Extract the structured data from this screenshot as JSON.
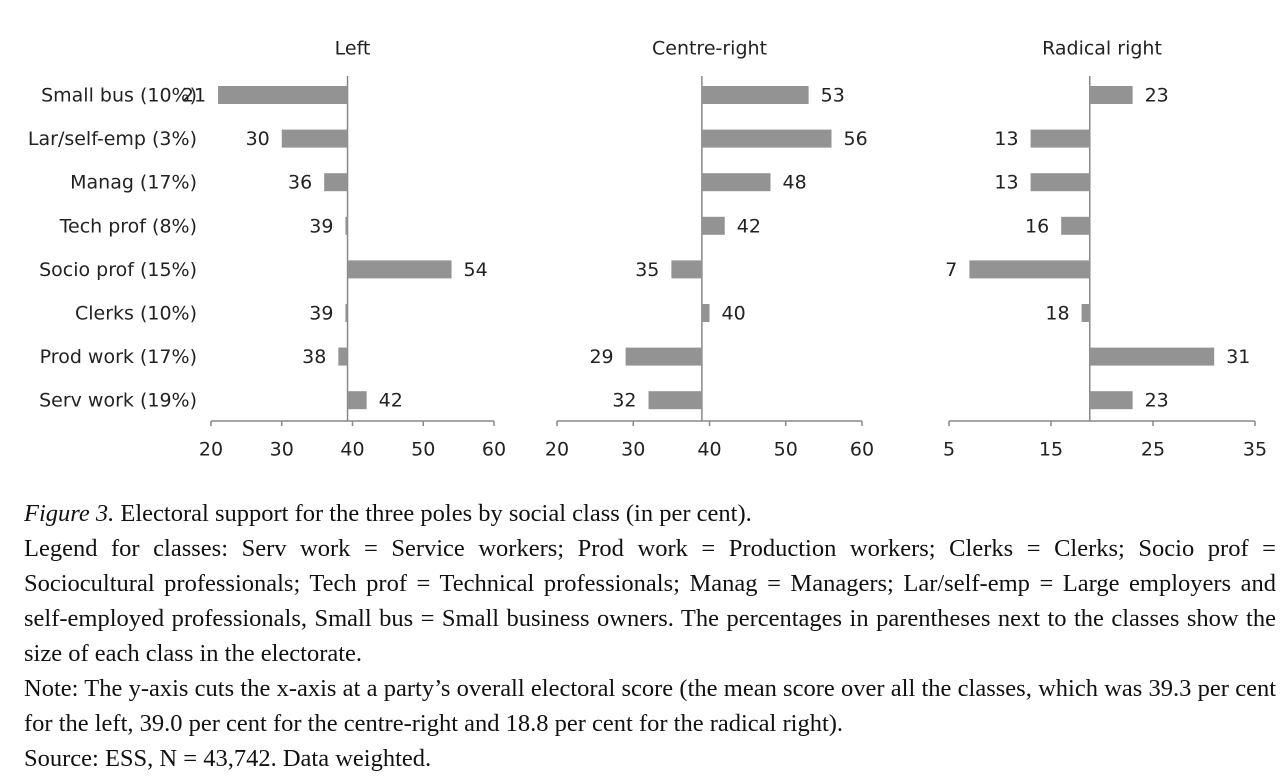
{
  "chart_data": [
    {
      "type": "hbar",
      "title": "Left",
      "categories": [
        "Small bus (10%)",
        "Lar/self-emp (3%)",
        "Manag (17%)",
        "Tech prof (8%)",
        "Socio prof (15%)",
        "Clerks (10%)",
        "Prod work (17%)",
        "Serv work (19%)"
      ],
      "values": [
        21,
        30,
        36,
        39,
        54,
        39,
        38,
        42
      ],
      "baseline": 39.3,
      "color": "#939393",
      "xlim": [
        20,
        60
      ],
      "xticks": [
        20,
        30,
        40,
        50,
        60
      ]
    },
    {
      "type": "hbar",
      "title": "Centre-right",
      "values": [
        53,
        56,
        48,
        42,
        35,
        40,
        29,
        32
      ],
      "baseline": 39.0,
      "color": "#939393",
      "xlim": [
        20,
        60
      ],
      "xticks": [
        20,
        30,
        40,
        50,
        60
      ]
    },
    {
      "type": "hbar",
      "title": "Radical right",
      "values": [
        23,
        13,
        13,
        16,
        7,
        18,
        31,
        23
      ],
      "baseline": 18.8,
      "color": "#939393",
      "xlim": [
        5,
        35
      ],
      "xticks": [
        5,
        15,
        25,
        35
      ]
    }
  ],
  "caption": {
    "label": "Figure 3.",
    "title": "Electoral support for the three poles by social class (in per cent).",
    "legend": "Legend for classes: Serv work = Service workers; Prod work = Production workers; Clerks = Clerks; Socio prof = Sociocultural professionals; Tech prof = Technical professionals; Manag = Managers; Lar/self-emp = Large employers and self-employed professionals, Small bus = Small business owners. The percentages in parentheses next to the classes show the size of each class in the electorate.",
    "note": "Note: The y-axis cuts the x-axis at a party’s overall electoral score (the mean score over all the classes, which was 39.3 per cent for the left, 39.0 per cent for the centre-right and 18.8 per cent for the radical right).",
    "source": "Source: ESS, N = 43,742. Data weighted."
  }
}
